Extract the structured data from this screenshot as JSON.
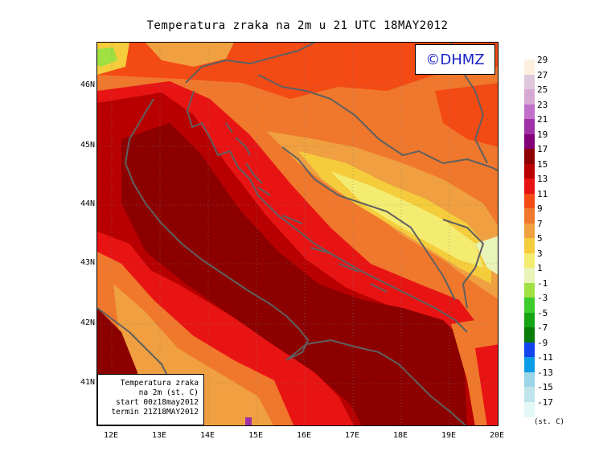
{
  "title": "Temperatura zraka na 2m u 21 UTC 18MAY2012",
  "logo_text": "©DHMZ",
  "info_box": {
    "line1": "Temperatura zraka",
    "line2": "na 2m (st. C)",
    "line3": "start 00z18may2012",
    "line4": "termin 21Z18MAY2012"
  },
  "lat_labels": [
    "46N",
    "45N",
    "44N",
    "43N",
    "42N",
    "41N"
  ],
  "lon_labels": [
    "12E",
    "13E",
    "14E",
    "15E",
    "16E",
    "17E",
    "18E",
    "19E",
    "20E"
  ],
  "legend": {
    "unit": "(st. C)",
    "labels": [
      "29",
      "27",
      "25",
      "23",
      "21",
      "19",
      "17",
      "15",
      "13",
      "11",
      "9",
      "7",
      "5",
      "3",
      "1",
      "-1",
      "-3",
      "-5",
      "-7",
      "-9",
      "-11",
      "-13",
      "-15",
      "-17"
    ],
    "colors": [
      "#fdf0e0",
      "#e0c8dc",
      "#d8a8d4",
      "#c070c8",
      "#a030a8",
      "#820078",
      "#8c0000",
      "#b80000",
      "#e81414",
      "#f44a14",
      "#f0782c",
      "#f0a040",
      "#f4cc3c",
      "#f4ec70",
      "#e8f4b8",
      "#a0e040",
      "#3ccc2c",
      "#14a414",
      "#0a7c0a",
      "#1444ec",
      "#0a9ce4",
      "#9cd4e8",
      "#c0e4ec",
      "#e4f8f8"
    ]
  },
  "map": {
    "region": "Adriatic Sea and Croatia",
    "field": "2m air temperature",
    "colors": {
      "sea_warm": "#8c0000",
      "deep_red": "#b80000",
      "red": "#e81414",
      "red_orange": "#f44a14",
      "orange": "#f0782c",
      "light_orange": "#f0a040",
      "gold": "#f4cc3c",
      "yellow": "#f4ec70",
      "pale_yellow": "#e8f4b8",
      "green": "#a0e040",
      "coast": "#606060"
    }
  }
}
